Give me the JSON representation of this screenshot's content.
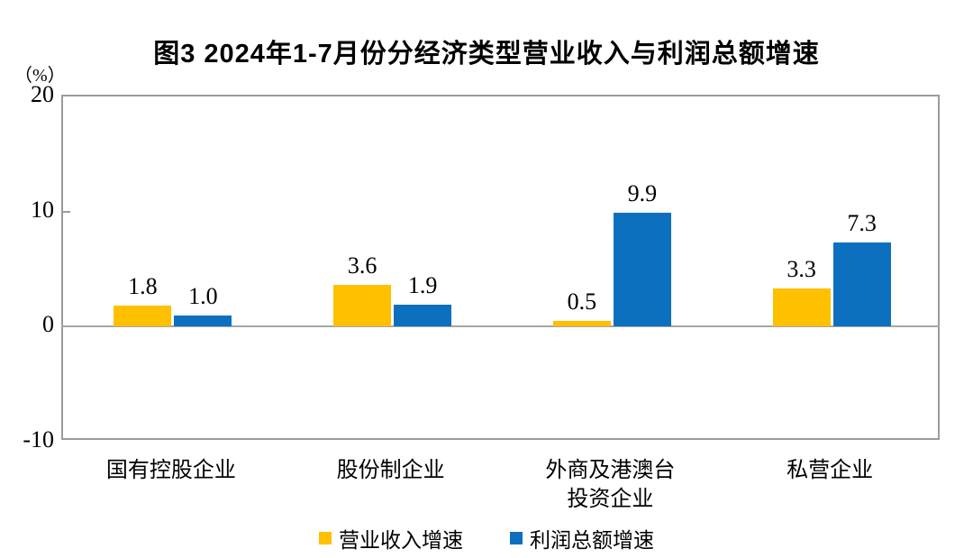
{
  "chart_data": {
    "type": "bar",
    "title": "图3 2024年1-7月份分经济类型营业收入与利润总额增速",
    "unit_label": "（%）",
    "xlabel": "",
    "ylabel": "（%）",
    "categories": [
      "国有控股企业",
      "股份制企业",
      "外商及港澳台\n投资企业",
      "私营企业"
    ],
    "series": [
      {
        "name": "营业收入增速",
        "color": "#FFC000",
        "values": [
          1.8,
          3.6,
          0.5,
          3.3
        ]
      },
      {
        "name": "利润总额增速",
        "color": "#0D70BF",
        "values": [
          1.0,
          1.9,
          9.9,
          7.3
        ]
      }
    ],
    "ylim": [
      -10,
      20
    ],
    "yticks": [
      20,
      10,
      0,
      -10
    ],
    "grid": false,
    "legend_position": "bottom",
    "value_labels": true,
    "frame_color": "#9b9b9b"
  }
}
